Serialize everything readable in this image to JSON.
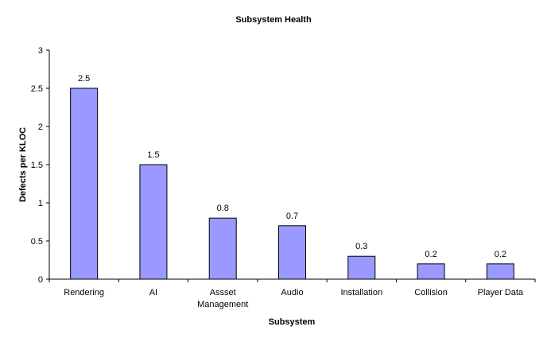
{
  "chart_data": {
    "type": "bar",
    "title": "Subsystem Health",
    "xlabel": "Subsystem",
    "ylabel": "Defects per KLOC",
    "categories": [
      [
        "Rendering"
      ],
      [
        "AI"
      ],
      [
        "Assset",
        "Management"
      ],
      [
        "Audio"
      ],
      [
        "Installation"
      ],
      [
        "Collision"
      ],
      [
        "Player Data"
      ]
    ],
    "values": [
      2.5,
      1.5,
      0.8,
      0.7,
      0.3,
      0.2,
      0.2
    ],
    "data_labels": [
      "2.5",
      "1.5",
      "0.8",
      "0.7",
      "0.3",
      "0.2",
      "0.2"
    ],
    "y_ticks": [
      "0",
      "0.5",
      "1",
      "1.5",
      "2",
      "2.5",
      "3"
    ],
    "ylim": [
      0,
      3
    ],
    "grid": false,
    "legend": "none",
    "colors": {
      "bar_fill": "#9999ff",
      "bar_stroke": "#000000"
    }
  }
}
